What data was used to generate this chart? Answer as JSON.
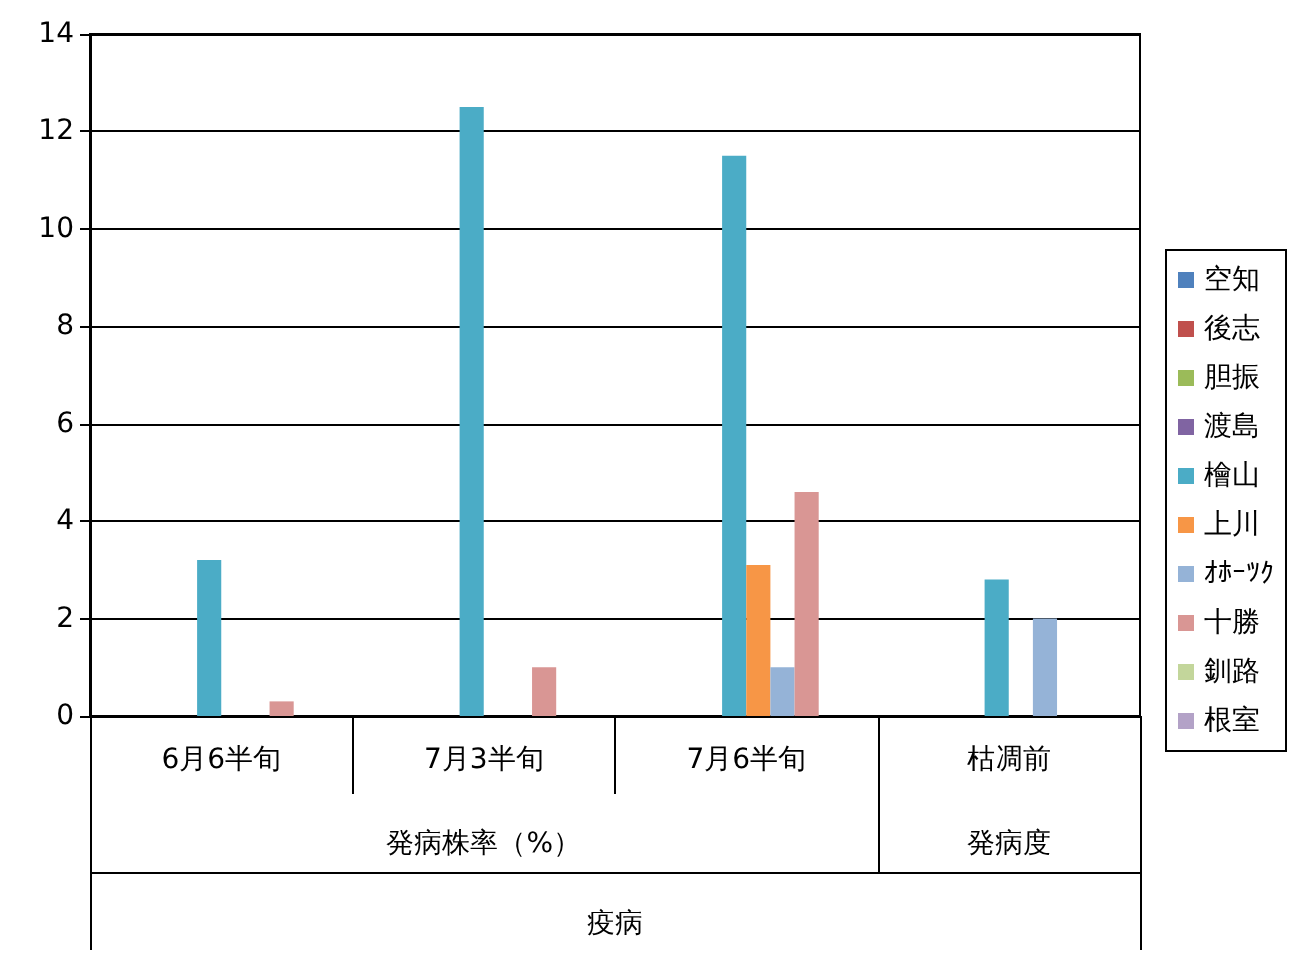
{
  "chart_data": {
    "type": "bar",
    "categories": [
      "6月6半旬",
      "7月3半旬",
      "7月6半旬",
      "枯凋前"
    ],
    "xlabel": "疫病",
    "annotations": [
      "発病株率（%）",
      "発病度"
    ],
    "ylim": [
      0,
      14
    ],
    "yticks": [
      0,
      2,
      4,
      6,
      8,
      10,
      12,
      14
    ],
    "grid": "y",
    "legend": "right",
    "series": [
      {
        "name": "空知",
        "color": "#4f81bd",
        "values": [
          null,
          null,
          null,
          null
        ]
      },
      {
        "name": "後志",
        "color": "#c0504d",
        "values": [
          null,
          null,
          null,
          null
        ]
      },
      {
        "name": "胆振",
        "color": "#9bbb59",
        "values": [
          null,
          null,
          null,
          null
        ]
      },
      {
        "name": "渡島",
        "color": "#8064a2",
        "values": [
          null,
          null,
          null,
          null
        ]
      },
      {
        "name": "檜山",
        "color": "#4bacc6",
        "values": [
          3.2,
          12.5,
          11.5,
          2.8
        ]
      },
      {
        "name": "上川",
        "color": "#f79646",
        "values": [
          null,
          null,
          3.1,
          null
        ]
      },
      {
        "name": "ｵﾎｰﾂｸ",
        "color": "#95b3d7",
        "values": [
          null,
          null,
          1.0,
          2.0
        ]
      },
      {
        "name": "十勝",
        "color": "#d99694",
        "values": [
          0.3,
          1.0,
          4.6,
          null
        ]
      },
      {
        "name": "釧路",
        "color": "#c3d69b",
        "values": [
          null,
          null,
          null,
          null
        ]
      },
      {
        "name": "根室",
        "color": "#b3a2c7",
        "values": [
          null,
          null,
          null,
          null
        ]
      }
    ]
  }
}
